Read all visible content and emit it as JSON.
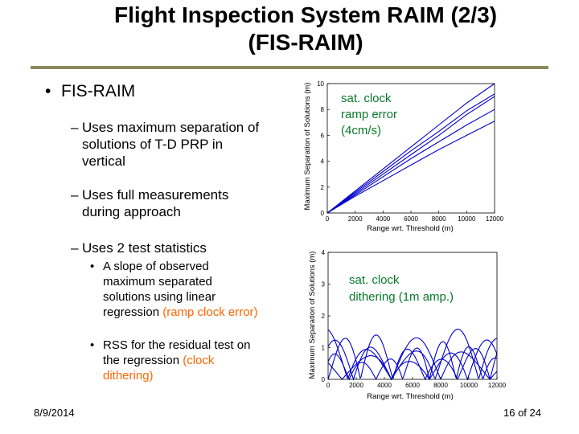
{
  "slide": {
    "title_line1": "Flight Inspection System RAIM (2/3)",
    "title_line2": "(FIS-RAIM)",
    "date": "8/9/2014",
    "page": "16 of 24"
  },
  "bullets": {
    "main": "FIS-RAIM",
    "sub1": "Uses maximum separation of solutions of T-D PRP in vertical",
    "sub2": "Uses full measurements during approach",
    "sub3": "Uses 2 test statistics",
    "sub3a_text": "A slope of observed maximum separated solutions using linear regression ",
    "sub3a_highlight": "(ramp clock error)",
    "sub3b_text": "RSS for the residual test on the regression ",
    "sub3b_highlight": "(clock dithering)",
    "dash": "–",
    "dot": "•"
  },
  "colors": {
    "highlight": "#ff6600",
    "series": "#0000cc",
    "annotation": "#0a7a2a",
    "title_rule": "#8a8a5c"
  },
  "chart_data": [
    {
      "type": "line",
      "xlabel": "Range wrt. Threshold (m)",
      "ylabel": "Maximum Separation of Solutions (m)",
      "xlim": [
        0,
        12000
      ],
      "ylim": [
        0,
        10
      ],
      "xticks": [
        "0",
        "2000",
        "4000",
        "6000",
        "8000",
        "10000",
        "12000"
      ],
      "yticks": [
        "0",
        "2",
        "4",
        "6",
        "8",
        "10"
      ],
      "annotation_line1": "sat. clock",
      "annotation_line2": "ramp error",
      "annotation_line3": "(4cm/s)",
      "series": [
        {
          "x": [
            0,
            2000,
            4000,
            6000,
            8000,
            10000,
            12000
          ],
          "y": [
            0,
            1.7,
            3.4,
            5.1,
            6.8,
            8.5,
            10
          ]
        },
        {
          "x": [
            0,
            2000,
            4000,
            6000,
            8000,
            10000,
            12000
          ],
          "y": [
            0,
            1.6,
            3.2,
            4.8,
            6.3,
            7.9,
            9.2
          ]
        },
        {
          "x": [
            0,
            2000,
            4000,
            6000,
            8000,
            10000,
            12000
          ],
          "y": [
            0,
            1.5,
            3.0,
            4.5,
            6.0,
            7.6,
            9.0
          ]
        },
        {
          "x": [
            0,
            2000,
            4000,
            6000,
            8000,
            10000,
            12000
          ],
          "y": [
            0,
            1.4,
            2.8,
            4.2,
            5.5,
            6.8,
            8.0
          ]
        },
        {
          "x": [
            0,
            2000,
            4000,
            6000,
            8000,
            10000,
            12000
          ],
          "y": [
            0,
            1.3,
            2.5,
            3.7,
            4.9,
            6.0,
            7.1
          ]
        }
      ]
    },
    {
      "type": "line",
      "xlabel": "Range wrt. Threshold (m)",
      "ylabel": "Maximum Separation of Solutions (m)",
      "xlim": [
        0,
        12000
      ],
      "ylim": [
        0,
        4
      ],
      "xticks": [
        "0",
        "2000",
        "4000",
        "6000",
        "8000",
        "10000",
        "12000"
      ],
      "yticks": [
        "0",
        "1",
        "2",
        "3",
        "4"
      ],
      "annotation_line1": "sat. clock",
      "annotation_line2": "dithering (1m amp.)",
      "series": [
        {
          "period": 2300,
          "amp": 1.15,
          "phase": 0
        },
        {
          "period": 2700,
          "amp": 1.0,
          "phase": 900
        },
        {
          "period": 3100,
          "amp": 1.3,
          "phase": 1700
        },
        {
          "period": 1900,
          "amp": 0.95,
          "phase": 400
        },
        {
          "period": 3500,
          "amp": 1.05,
          "phase": 2500
        }
      ]
    }
  ]
}
